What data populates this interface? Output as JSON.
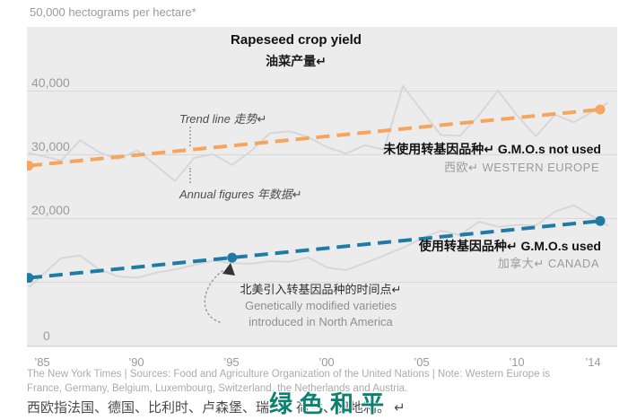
{
  "unit_label": "50,000 hectograms per hectare*",
  "title": {
    "en": "Rapeseed crop yield",
    "zh": "油菜产量↵"
  },
  "annotations": {
    "trend_line": "Trend line  走势↵",
    "annual_figures": "Annual figures  年数据↵",
    "we_label_bold": "未使用转基因品种↵ G.M.O.s not used",
    "we_label_gray": "西欧↵ WESTERN EUROPE",
    "ca_label_bold": "使用转基因品种↵ G.M.O.s used",
    "ca_label_gray": "加拿大↵          CANADA",
    "gm_zh": "北美引入转基因品种的时间点↵",
    "gm_en1": "Genetically modified varieties",
    "gm_en2": "introduced in North America"
  },
  "axis": {
    "y_ticks": [
      {
        "value": 40000,
        "label": "40,000"
      },
      {
        "value": 30000,
        "label": "30,000"
      },
      {
        "value": 20000,
        "label": "20,000"
      },
      {
        "value": 0,
        "label": "0"
      }
    ],
    "x_ticks": [
      {
        "year": 1985,
        "label": "’85"
      },
      {
        "year": 1990,
        "label": "’90"
      },
      {
        "year": 1995,
        "label": "’95"
      },
      {
        "year": 2000,
        "label": "’00"
      },
      {
        "year": 2005,
        "label": "’05"
      },
      {
        "year": 2010,
        "label": "’10"
      },
      {
        "year": 2014,
        "label": "’14"
      }
    ]
  },
  "footer": {
    "line1": "The New York Times  |  Sources: Food and Agriculture Organization of the United Nations  |  Note: Western Europe is",
    "line2": "France, Germany, Belgium, Luxembourg, Switzerland, the Netherlands and Austria.",
    "line3_zh": "西欧指法国、德国、比利时、卢森堡、瑞士、荷兰、奥地利。 ↵"
  },
  "watermark": "绿色和平",
  "colors": {
    "we_trend_orange": "#F5A55E",
    "ca_trend_blue": "#1F7BA4",
    "annual_gray": "#D7D7D7",
    "plot_bg": "#ECECEC",
    "gridline": "#D8D8D8",
    "watermark_teal": "#0D8170"
  },
  "chart_data": {
    "type": "line",
    "title": "Rapeseed crop yield",
    "title_zh": "油菜产量",
    "ylabel": "hectograms per hectare",
    "ylim": [
      0,
      50000
    ],
    "y_gridlines": [
      0,
      10000,
      20000,
      30000,
      40000
    ],
    "grid": true,
    "x": [
      1985,
      1986,
      1987,
      1988,
      1989,
      1990,
      1991,
      1992,
      1993,
      1994,
      1995,
      1996,
      1997,
      1998,
      1999,
      2000,
      2001,
      2002,
      2003,
      2004,
      2005,
      2006,
      2007,
      2008,
      2009,
      2010,
      2011,
      2012,
      2013,
      2014
    ],
    "series": [
      {
        "name": "Western Europe — annual figures (G.M.O.s not used)",
        "role": "annual",
        "values": [
          29800,
          29100,
          32300,
          30400,
          29300,
          30700,
          28300,
          25900,
          29500,
          30100,
          28400,
          30600,
          33400,
          33700,
          32800,
          31200,
          30200,
          31500,
          30800,
          40800,
          36900,
          33100,
          33000,
          36200,
          40100,
          36200,
          32900,
          36300,
          35100,
          36800
        ]
      },
      {
        "name": "Canada — annual figures (G.M.O.s used)",
        "role": "annual",
        "values": [
          11100,
          13800,
          14200,
          12000,
          10900,
          10700,
          11500,
          12000,
          12700,
          13400,
          13000,
          12900,
          13300,
          13200,
          13900,
          12300,
          11900,
          13000,
          14200,
          15400,
          16900,
          18100,
          17400,
          19500,
          18700,
          19000,
          18900,
          21100,
          22100,
          20300
        ]
      },
      {
        "name": "Western Europe — trend line (G.M.O.s not used)",
        "role": "trend",
        "color": "#F5A55E",
        "x": [
          1985,
          2014
        ],
        "values": [
          28500,
          37000
        ],
        "markers": [
          1985,
          2014
        ]
      },
      {
        "name": "Canada — trend line (G.M.O.s used)",
        "role": "trend",
        "color": "#1F7BA4",
        "x": [
          1985,
          2014
        ],
        "values": [
          10900,
          19500
        ],
        "markers": [
          1985,
          1995,
          2014
        ]
      }
    ],
    "annotation": {
      "year": 1995,
      "series": "Canada",
      "value": 13900,
      "text": "Genetically modified varieties introduced in North America / 北美引入转基因品种的时间点"
    },
    "legend_position": "inline-labels"
  }
}
